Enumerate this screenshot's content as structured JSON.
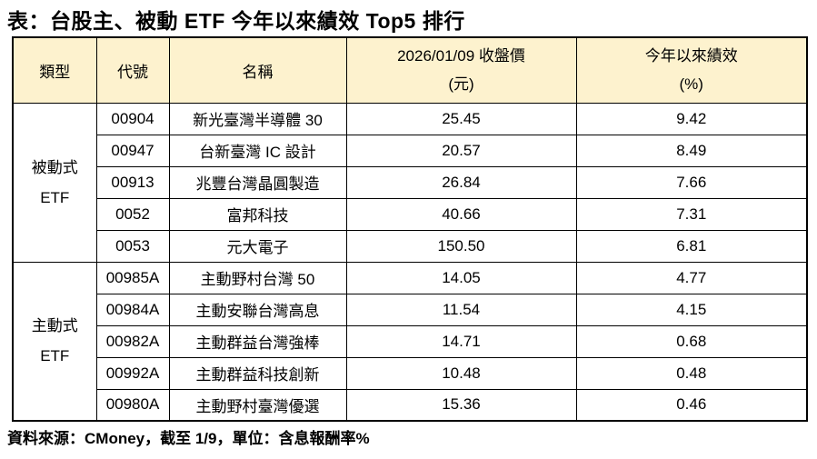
{
  "title": "表：台股主、被動 ETF 今年以來績效 Top5 排行",
  "footer": "資料來源：CMoney，截至 1/9，單位：含息報酬率%",
  "colors": {
    "header_bg": "#FDF2CE",
    "border": "#000000",
    "text": "#000000",
    "background": "#FFFFFF"
  },
  "table": {
    "headers": {
      "type": "類型",
      "code": "代號",
      "name": "名稱",
      "price_line1": "2026/01/09 收盤價",
      "price_line2": "(元)",
      "perf_line1": "今年以來績效",
      "perf_line2": "(%)"
    },
    "groups": [
      {
        "type_line1": "被動式",
        "type_line2": "ETF"
      },
      {
        "type_line1": "主動式",
        "type_line2": "ETF"
      }
    ],
    "rows": [
      {
        "code": "00904",
        "name": "新光臺灣半導體 30",
        "price": "25.45",
        "perf": "9.42"
      },
      {
        "code": "00947",
        "name": "台新臺灣 IC 設計",
        "price": "20.57",
        "perf": "8.49"
      },
      {
        "code": "00913",
        "name": "兆豐台灣晶圓製造",
        "price": "26.84",
        "perf": "7.66"
      },
      {
        "code": "0052",
        "name": "富邦科技",
        "price": "40.66",
        "perf": "7.31"
      },
      {
        "code": "0053",
        "name": "元大電子",
        "price": "150.50",
        "perf": "6.81"
      },
      {
        "code": "00985A",
        "name": "主動野村台灣 50",
        "price": "14.05",
        "perf": "4.77"
      },
      {
        "code": "00984A",
        "name": "主動安聯台灣高息",
        "price": "11.54",
        "perf": "4.15"
      },
      {
        "code": "00982A",
        "name": "主動群益台灣強棒",
        "price": "14.71",
        "perf": "0.68"
      },
      {
        "code": "00992A",
        "name": "主動群益科技創新",
        "price": "10.48",
        "perf": "0.48"
      },
      {
        "code": "00980A",
        "name": "主動野村臺灣優選",
        "price": "15.36",
        "perf": "0.46"
      }
    ]
  },
  "chart_data": {
    "type": "table",
    "title": "表：台股主、被動 ETF 今年以來績效 Top5 排行",
    "columns": [
      "類型",
      "代號",
      "名稱",
      "2026/01/09 收盤價 (元)",
      "今年以來績效 (%)"
    ],
    "rows": [
      [
        "被動式 ETF",
        "00904",
        "新光臺灣半導體 30",
        25.45,
        9.42
      ],
      [
        "被動式 ETF",
        "00947",
        "台新臺灣 IC 設計",
        20.57,
        8.49
      ],
      [
        "被動式 ETF",
        "00913",
        "兆豐台灣晶圓製造",
        26.84,
        7.66
      ],
      [
        "被動式 ETF",
        "0052",
        "富邦科技",
        40.66,
        7.31
      ],
      [
        "被動式 ETF",
        "0053",
        "元大電子",
        150.5,
        6.81
      ],
      [
        "主動式 ETF",
        "00985A",
        "主動野村台灣 50",
        14.05,
        4.77
      ],
      [
        "主動式 ETF",
        "00984A",
        "主動安聯台灣高息",
        11.54,
        4.15
      ],
      [
        "主動式 ETF",
        "00982A",
        "主動群益台灣強棒",
        14.71,
        0.68
      ],
      [
        "主動式 ETF",
        "00992A",
        "主動群益科技創新",
        10.48,
        0.48
      ],
      [
        "主動式 ETF",
        "00980A",
        "主動野村臺灣優選",
        15.36,
        0.46
      ]
    ],
    "footnote": "資料來源：CMoney，截至 1/9，單位：含息報酬率%"
  }
}
